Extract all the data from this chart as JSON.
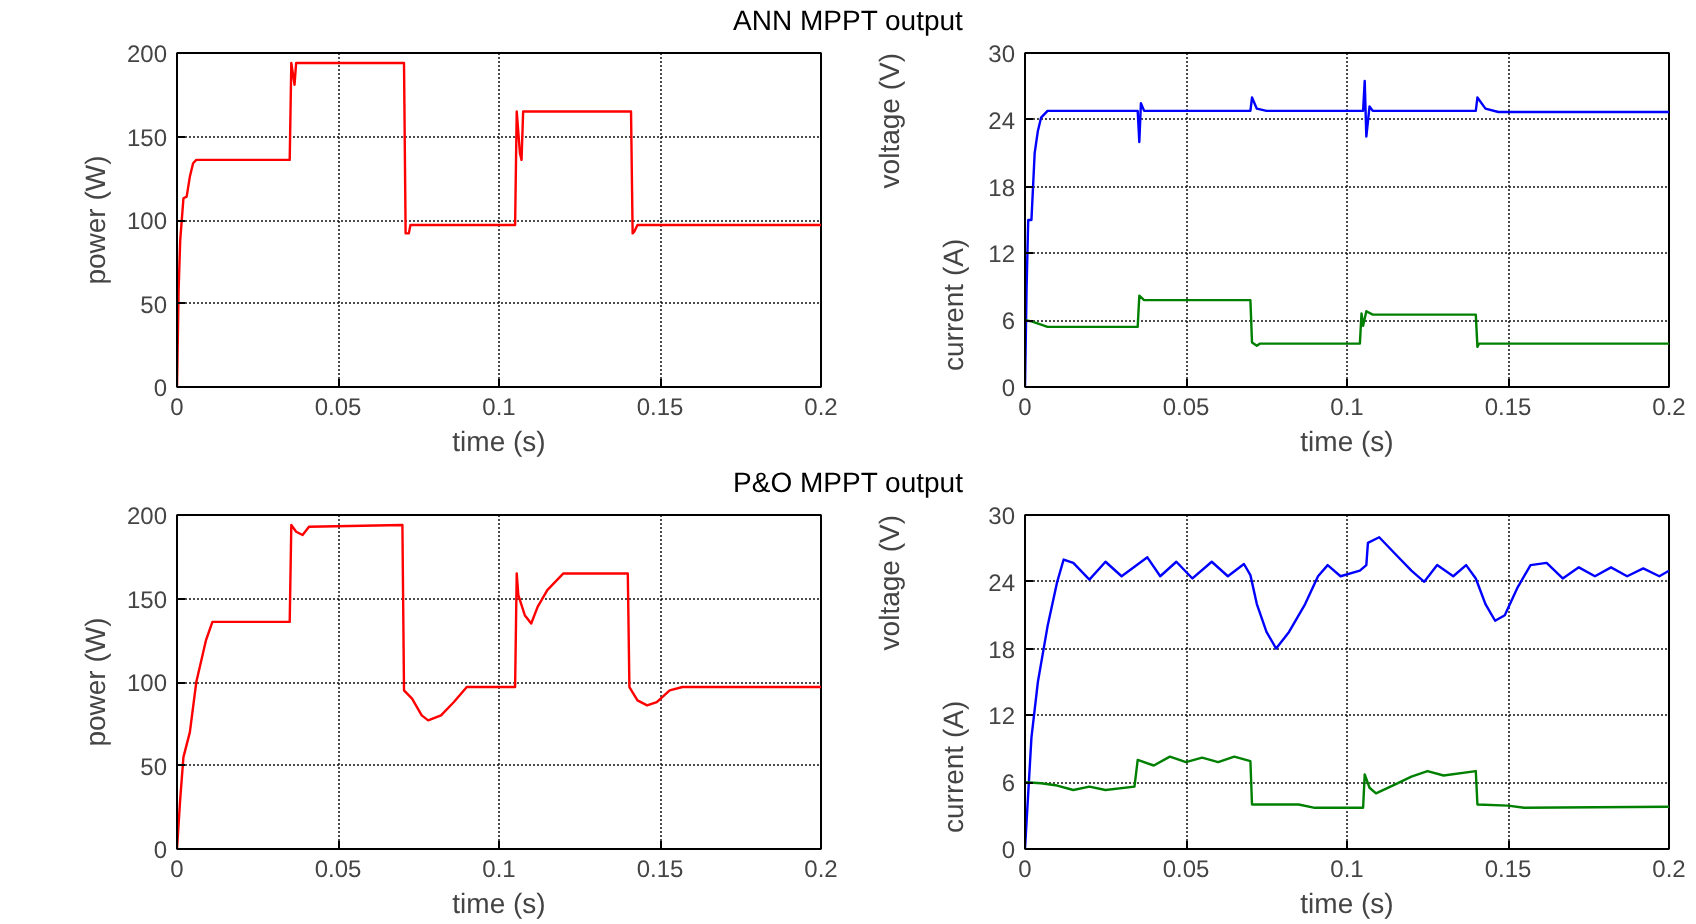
{
  "chart_data": [
    {
      "type": "line",
      "title": "ANN MPPT output",
      "xlabel": "time (s)",
      "ylabel": "power (W)",
      "xlim": [
        0,
        0.2
      ],
      "xticks": [
        0,
        0.05,
        0.1,
        0.15,
        0.2
      ],
      "ylim": [
        0,
        200
      ],
      "yticks": [
        0,
        50,
        100,
        150,
        200
      ],
      "grid": true,
      "series": [
        {
          "color": "#ff0000",
          "x": [
            0,
            0.0005,
            0.001,
            0.002,
            0.003,
            0.004,
            0.005,
            0.006,
            0.035,
            0.0355,
            0.0365,
            0.037,
            0.0705,
            0.071,
            0.072,
            0.0725,
            0.105,
            0.1055,
            0.1065,
            0.107,
            0.1075,
            0.141,
            0.1415,
            0.142,
            0.143,
            0.2
          ],
          "values": [
            0,
            58,
            88,
            113,
            114,
            126,
            134,
            136,
            136,
            194,
            181,
            194,
            194,
            92,
            92,
            97,
            97,
            165,
            140,
            136,
            165,
            165,
            92,
            93,
            97,
            97
          ]
        }
      ]
    },
    {
      "type": "line",
      "xlabel": "time (s)",
      "ylabel": "voltage (V)",
      "annotations": [
        "current (A)"
      ],
      "xlim": [
        0,
        0.2
      ],
      "xticks": [
        0,
        0.05,
        0.1,
        0.15,
        0.2
      ],
      "ylim": [
        0,
        30
      ],
      "yticks": [
        0,
        6,
        12,
        18,
        24,
        30
      ],
      "grid": true,
      "series": [
        {
          "color": "#0000ff",
          "x": [
            0,
            0.0005,
            0.001,
            0.002,
            0.003,
            0.004,
            0.005,
            0.007,
            0.035,
            0.0355,
            0.036,
            0.037,
            0.07,
            0.0705,
            0.072,
            0.075,
            0.105,
            0.1055,
            0.106,
            0.107,
            0.108,
            0.14,
            0.1405,
            0.143,
            0.147,
            0.2
          ],
          "values": [
            0,
            9,
            15,
            15,
            21,
            23,
            24.2,
            24.8,
            24.8,
            22,
            25.5,
            24.8,
            24.8,
            26,
            25,
            24.8,
            24.8,
            27.5,
            22.5,
            25.2,
            24.8,
            24.8,
            26,
            25,
            24.7,
            24.7
          ]
        },
        {
          "color": "#008000",
          "x": [
            0,
            0.002,
            0.005,
            0.007,
            0.035,
            0.0355,
            0.037,
            0.07,
            0.0705,
            0.072,
            0.073,
            0.104,
            0.1045,
            0.105,
            0.106,
            0.108,
            0.14,
            0.1405,
            0.141,
            0.2
          ],
          "values": [
            6,
            5.9,
            5.6,
            5.4,
            5.4,
            8.2,
            7.8,
            7.8,
            4,
            3.7,
            3.9,
            3.9,
            6.6,
            5.5,
            6.8,
            6.5,
            6.5,
            3.6,
            3.9,
            3.9
          ]
        }
      ]
    },
    {
      "type": "line",
      "title": "P&O MPPT output",
      "xlabel": "time (s)",
      "ylabel": "power (W)",
      "xlim": [
        0,
        0.2
      ],
      "xticks": [
        0,
        0.05,
        0.1,
        0.15,
        0.2
      ],
      "ylim": [
        0,
        200
      ],
      "yticks": [
        0,
        50,
        100,
        150,
        200
      ],
      "grid": true,
      "series": [
        {
          "color": "#ff0000",
          "x": [
            0,
            0.001,
            0.002,
            0.004,
            0.006,
            0.009,
            0.011,
            0.035,
            0.0355,
            0.037,
            0.039,
            0.041,
            0.07,
            0.0705,
            0.073,
            0.076,
            0.078,
            0.082,
            0.086,
            0.09,
            0.105,
            0.1055,
            0.106,
            0.108,
            0.11,
            0.112,
            0.115,
            0.12,
            0.14,
            0.1405,
            0.143,
            0.146,
            0.149,
            0.153,
            0.157,
            0.2
          ],
          "values": [
            0,
            30,
            55,
            70,
            100,
            125,
            136,
            136,
            194,
            190,
            188,
            193,
            194,
            95,
            90,
            80,
            77,
            80,
            88,
            97,
            97,
            165,
            152,
            140,
            135,
            145,
            155,
            165,
            165,
            97,
            89,
            86,
            88,
            95,
            97,
            97
          ]
        }
      ]
    },
    {
      "type": "line",
      "xlabel": "time (s)",
      "ylabel": "voltage (V)",
      "annotations": [
        "current (A)"
      ],
      "xlim": [
        0,
        0.2
      ],
      "xticks": [
        0,
        0.05,
        0.1,
        0.15,
        0.2
      ],
      "ylim": [
        0,
        30
      ],
      "yticks": [
        0,
        6,
        12,
        18,
        24,
        30
      ],
      "grid": true,
      "series": [
        {
          "color": "#0000ff",
          "x": [
            0,
            0.002,
            0.004,
            0.007,
            0.01,
            0.012,
            0.015,
            0.02,
            0.025,
            0.03,
            0.038,
            0.042,
            0.047,
            0.052,
            0.058,
            0.063,
            0.068,
            0.07,
            0.072,
            0.075,
            0.078,
            0.082,
            0.087,
            0.091,
            0.094,
            0.098,
            0.104,
            0.106,
            0.1065,
            0.11,
            0.115,
            0.12,
            0.124,
            0.128,
            0.133,
            0.137,
            0.14,
            0.143,
            0.146,
            0.149,
            0.153,
            0.157,
            0.162,
            0.167,
            0.172,
            0.177,
            0.182,
            0.187,
            0.192,
            0.197,
            0.2
          ],
          "values": [
            0,
            10,
            15,
            20,
            24,
            26,
            25.7,
            24.2,
            25.8,
            24.5,
            26.2,
            24.5,
            25.8,
            24.3,
            25.8,
            24.5,
            25.6,
            24.6,
            22,
            19.5,
            18,
            19.5,
            22,
            24.5,
            25.5,
            24.5,
            25,
            25.5,
            27.5,
            28,
            26.5,
            25,
            24,
            25.5,
            24.5,
            25.5,
            24.3,
            22,
            20.5,
            21,
            23.5,
            25.5,
            25.7,
            24.3,
            25.3,
            24.5,
            25.3,
            24.5,
            25.2,
            24.5,
            25
          ]
        },
        {
          "color": "#008000",
          "x": [
            0,
            0.005,
            0.01,
            0.015,
            0.02,
            0.025,
            0.034,
            0.035,
            0.04,
            0.045,
            0.05,
            0.055,
            0.06,
            0.065,
            0.07,
            0.0705,
            0.085,
            0.09,
            0.1,
            0.105,
            0.1055,
            0.107,
            0.109,
            0.115,
            0.12,
            0.125,
            0.13,
            0.14,
            0.1405,
            0.15,
            0.155,
            0.2
          ],
          "values": [
            6,
            5.9,
            5.7,
            5.3,
            5.6,
            5.3,
            5.6,
            8,
            7.5,
            8.3,
            7.8,
            8.2,
            7.8,
            8.3,
            7.9,
            4,
            4,
            3.7,
            3.7,
            3.7,
            6.7,
            5.5,
            5,
            5.8,
            6.5,
            7,
            6.6,
            7,
            4,
            3.9,
            3.7,
            3.8
          ]
        }
      ]
    }
  ]
}
